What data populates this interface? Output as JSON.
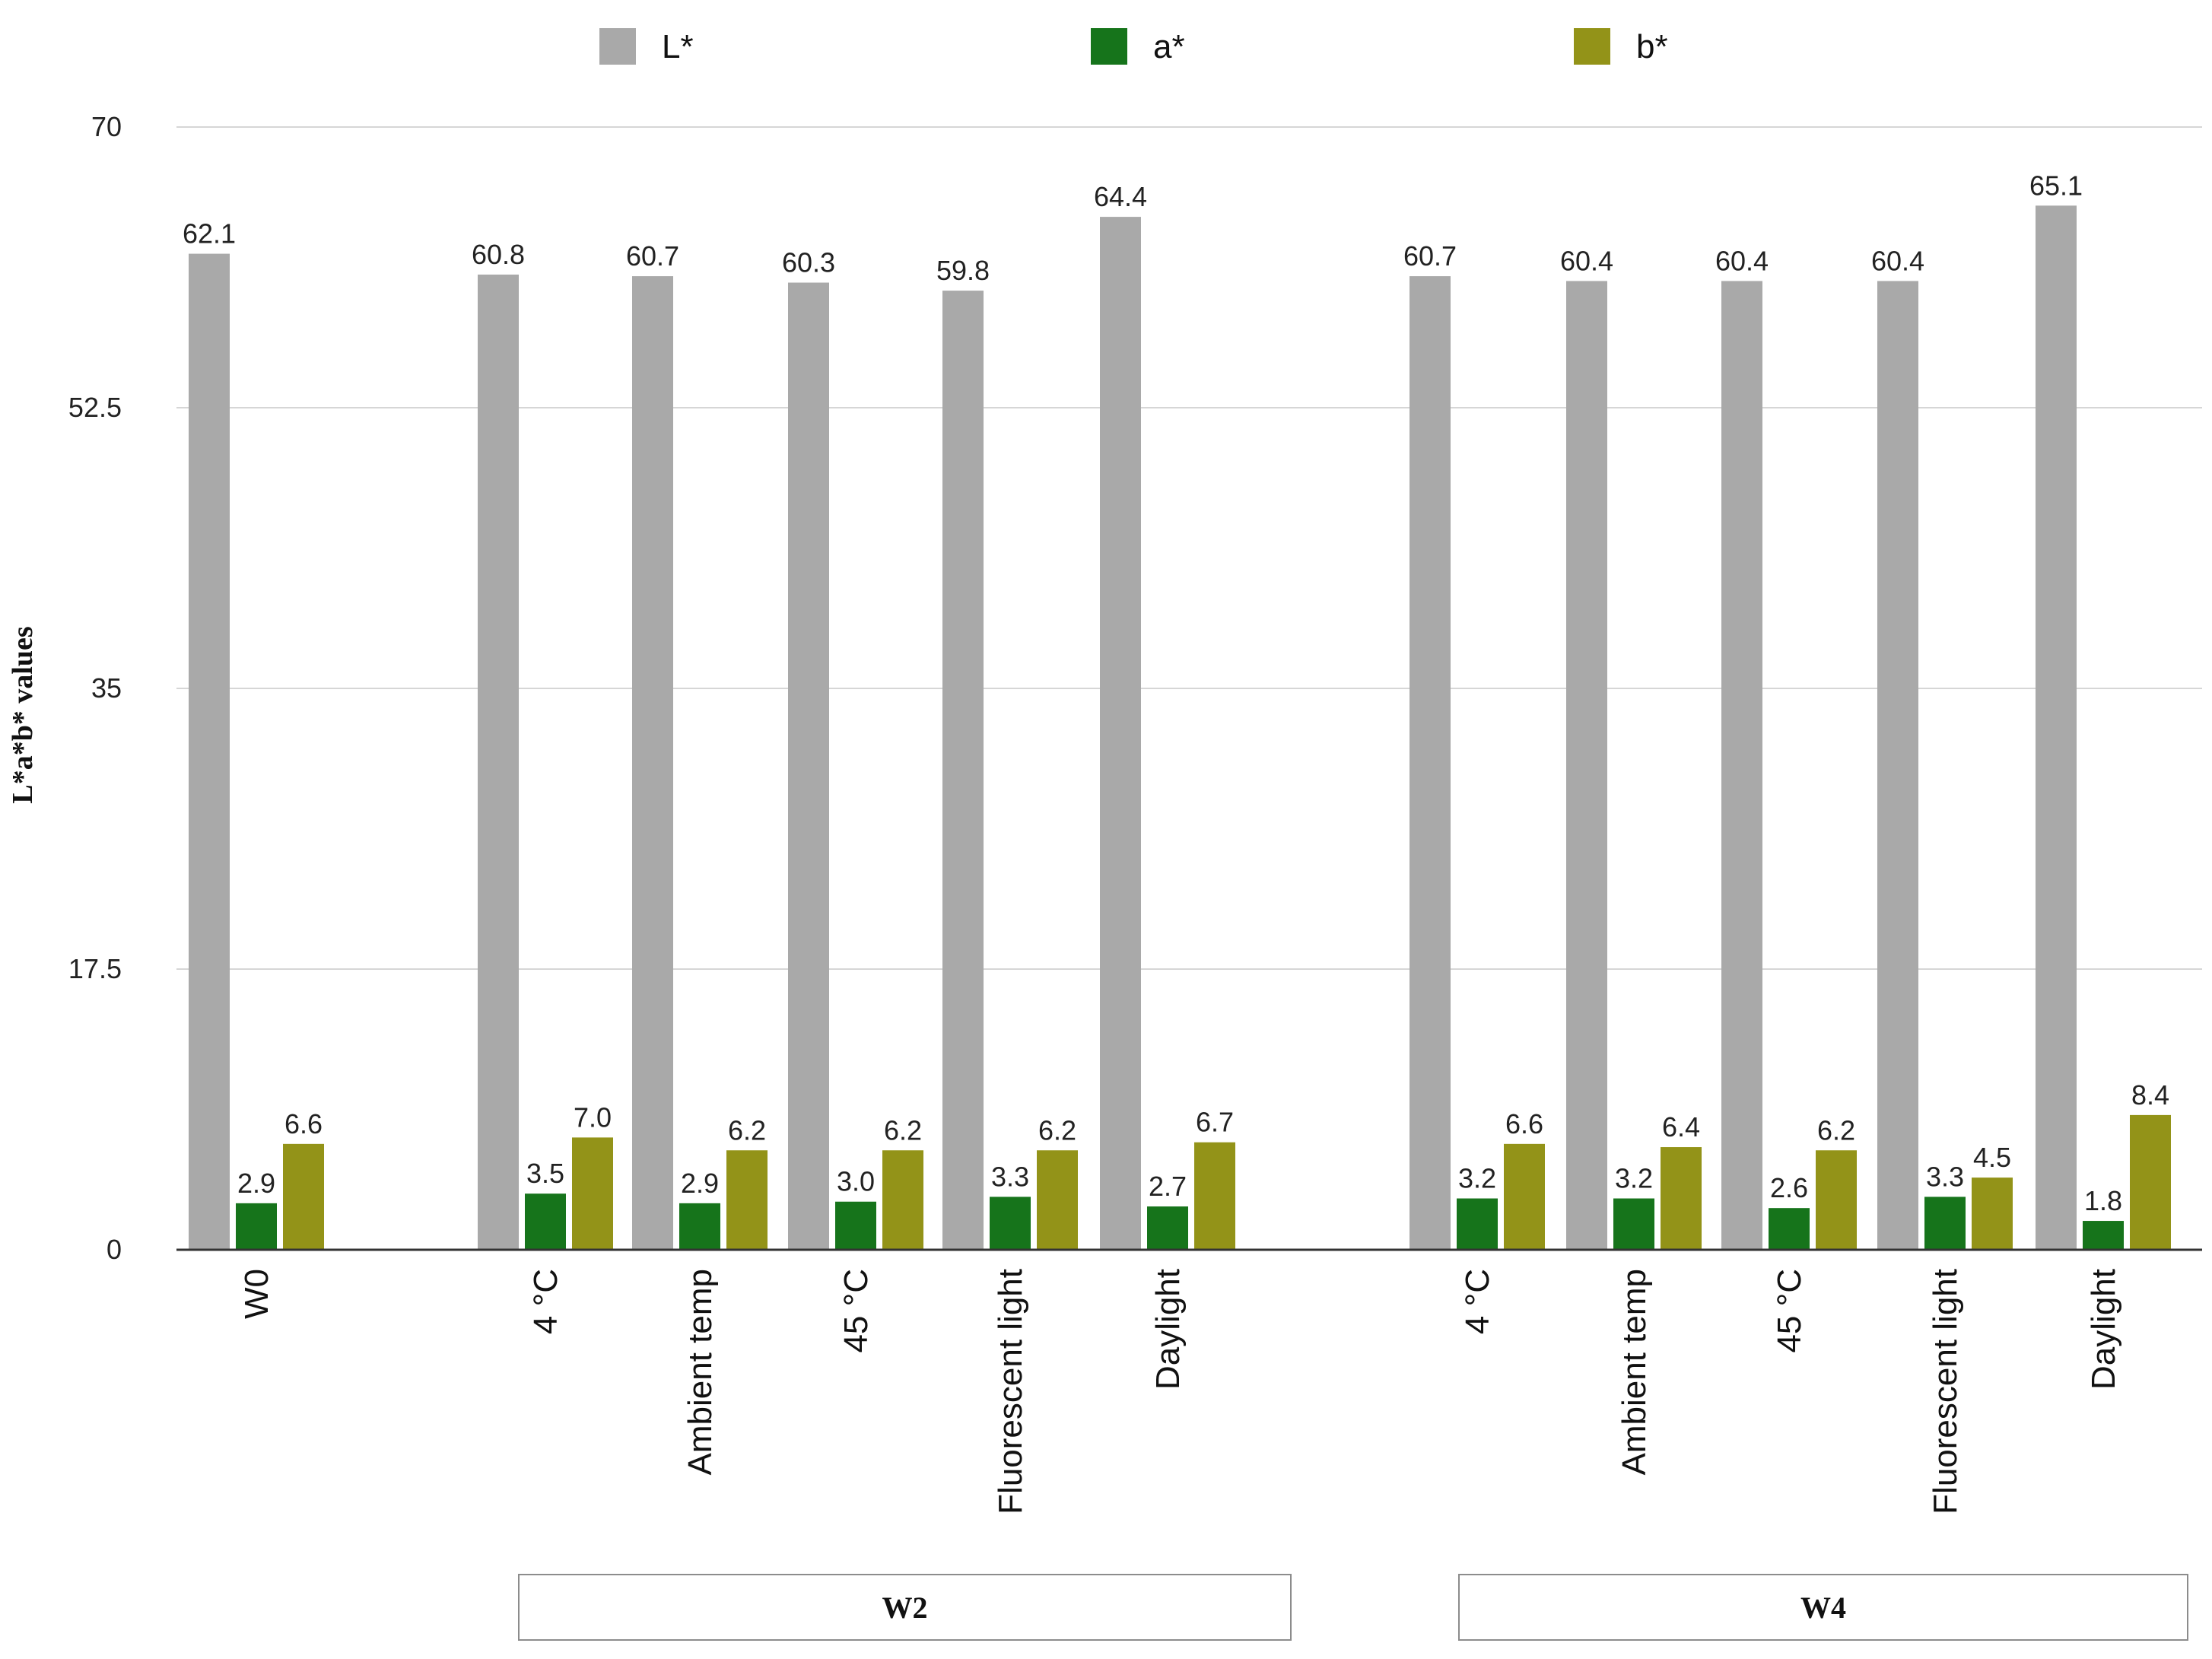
{
  "chart_data": {
    "type": "bar",
    "title": "",
    "xlabel": "",
    "ylabel": "L*a*b* values",
    "ylim": [
      0,
      70
    ],
    "yticks": [
      "0",
      "17.5",
      "35",
      "52.5",
      "70"
    ],
    "ytick_values": [
      0,
      17.5,
      35,
      52.5,
      70
    ],
    "grid": true,
    "legend_position": "top",
    "categories": [
      "W0",
      "4 °C",
      "Ambient temp",
      "45 °C",
      "Fluorescent light",
      "Daylight",
      "4 °C",
      "Ambient temp",
      "45 °C",
      "Fluorescent light",
      "Daylight"
    ],
    "series": [
      {
        "name": "L*",
        "color": "#a9a9a9",
        "values": [
          62.1,
          60.8,
          60.7,
          60.3,
          59.8,
          64.4,
          60.7,
          60.4,
          60.4,
          60.4,
          65.1
        ],
        "labels": [
          "62.1",
          "60.8",
          "60.7",
          "60.3",
          "59.8",
          "64.4",
          "60.7",
          "60.4",
          "60.4",
          "60.4",
          "65.1"
        ]
      },
      {
        "name": "a*",
        "color": "#16741b",
        "values": [
          2.9,
          3.5,
          2.9,
          3.0,
          3.3,
          2.7,
          3.2,
          3.2,
          2.6,
          3.3,
          1.8
        ],
        "labels": [
          "2.9",
          "3.5",
          "2.9",
          "3.0",
          "3.3",
          "2.7",
          "3.2",
          "3.2",
          "2.6",
          "3.3",
          "1.8"
        ]
      },
      {
        "name": "b*",
        "color": "#939318",
        "values": [
          6.6,
          7.0,
          6.2,
          6.2,
          6.2,
          6.7,
          6.6,
          6.4,
          6.2,
          4.5,
          8.4
        ],
        "labels": [
          "6.6",
          "7.0",
          "6.2",
          "6.2",
          "6.2",
          "6.7",
          "6.6",
          "6.4",
          "6.2",
          "4.5",
          "8.4"
        ]
      }
    ],
    "groups": [
      {
        "label": "W2",
        "from": 1,
        "to": 5
      },
      {
        "label": "W4",
        "from": 6,
        "to": 10
      }
    ]
  }
}
